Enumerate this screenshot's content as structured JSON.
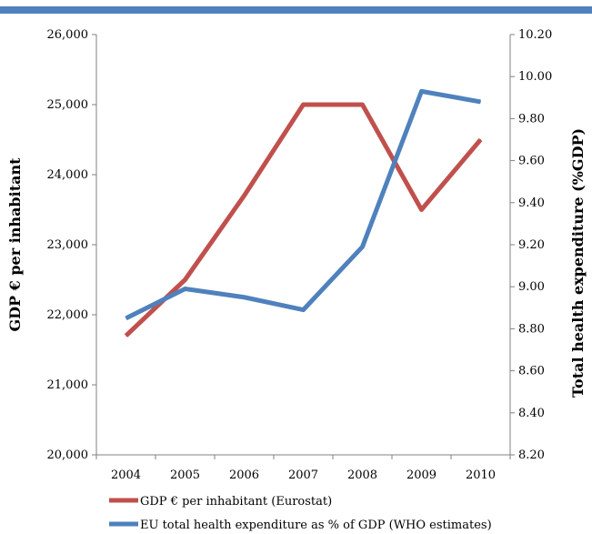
{
  "chart_data": {
    "type": "line",
    "title": "",
    "xlabel": "",
    "categories": [
      "2004",
      "2005",
      "2006",
      "2007",
      "2008",
      "2009",
      "2010"
    ],
    "y_left": {
      "label": "GDP € per inhabitant",
      "range": [
        20000,
        26000
      ],
      "ticks": [
        "20,000",
        "21,000",
        "22,000",
        "23,000",
        "24,000",
        "25,000",
        "26,000"
      ]
    },
    "y_right": {
      "label": "Total health expenditure (%GDP)",
      "range": [
        8.2,
        10.2
      ],
      "ticks": [
        "8.20",
        "8.40",
        "8.60",
        "8.80",
        "9.00",
        "9.20",
        "9.40",
        "9.60",
        "9.80",
        "10.00",
        "10.20"
      ]
    },
    "series": [
      {
        "name": "GDP € per inhabitant (Eurostat)",
        "axis": "left",
        "color": "#C0504D",
        "values": [
          21700,
          22500,
          23700,
          25000,
          25000,
          23500,
          24500
        ]
      },
      {
        "name": "EU total health expenditure as % of GDP (WHO estimates)",
        "axis": "right",
        "color": "#4F81BD",
        "values": [
          8.85,
          8.99,
          8.95,
          8.89,
          9.19,
          9.93,
          9.88
        ]
      }
    ],
    "grid": false,
    "legend_position": "bottom-left"
  },
  "header_bar_color": "#4F81BD"
}
